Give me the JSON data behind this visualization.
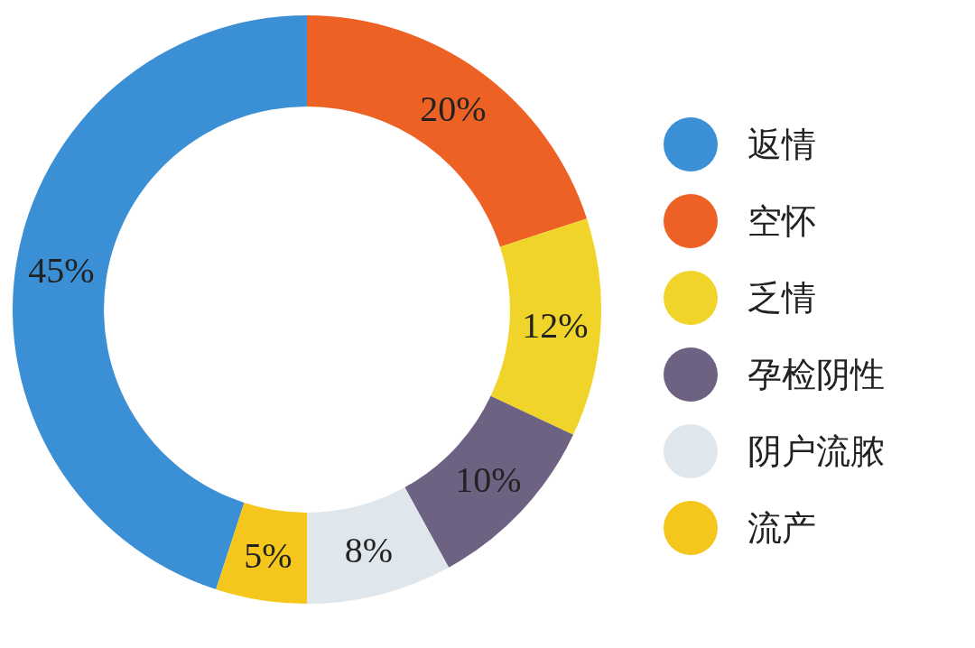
{
  "chart_data": {
    "type": "donut",
    "categories": [
      "返情",
      "空怀",
      "乏情",
      "孕检阴性",
      "阴户流脓",
      "流产"
    ],
    "values": [
      45,
      20,
      12,
      10,
      8,
      5
    ],
    "value_labels": [
      "45%",
      "20%",
      "12%",
      "10%",
      "8%",
      "5%"
    ],
    "colors": [
      "#3b8fd4",
      "#ee6125",
      "#f0d42a",
      "#6e6282",
      "#dfe6ec",
      "#f5c61c"
    ],
    "legend": "right"
  }
}
